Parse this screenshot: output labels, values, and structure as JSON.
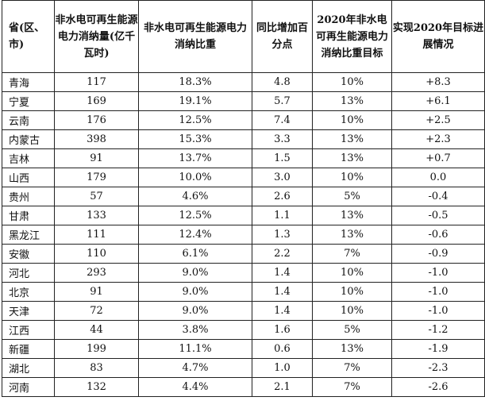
{
  "table": {
    "headers": [
      "省(区、市)",
      "非水电可再生能源电力消纳量(亿千瓦时)",
      "非水电可再生能源电力消纳比重",
      "同比增加百分点",
      "2020年非水电可再生能源电力消纳比重目标",
      "实现2020年目标进展情况"
    ],
    "rows": [
      [
        "青海",
        "117",
        "18.3%",
        "4.8",
        "10%",
        "+8.3"
      ],
      [
        "宁夏",
        "169",
        "19.1%",
        "5.7",
        "13%",
        "+6.1"
      ],
      [
        "云南",
        "176",
        "12.5%",
        "7.4",
        "10%",
        "+2.5"
      ],
      [
        "内蒙古",
        "398",
        "15.3%",
        "3.3",
        "13%",
        "+2.3"
      ],
      [
        "吉林",
        "91",
        "13.7%",
        "1.5",
        "13%",
        "+0.7"
      ],
      [
        "山西",
        "179",
        "10.0%",
        "3.0",
        "10%",
        "0.0"
      ],
      [
        "贵州",
        "57",
        "4.6%",
        "2.6",
        "5%",
        "-0.4"
      ],
      [
        "甘肃",
        "133",
        "12.5%",
        "1.1",
        "13%",
        "-0.5"
      ],
      [
        "黑龙江",
        "111",
        "12.4%",
        "1.3",
        "13%",
        "-0.6"
      ],
      [
        "安徽",
        "110",
        "6.1%",
        "2.2",
        "7%",
        "-0.9"
      ],
      [
        "河北",
        "293",
        "9.0%",
        "1.4",
        "10%",
        "-1.0"
      ],
      [
        "北京",
        "91",
        "9.0%",
        "1.4",
        "10%",
        "-1.0"
      ],
      [
        "天津",
        "72",
        "9.0%",
        "1.4",
        "10%",
        "-1.0"
      ],
      [
        "江西",
        "44",
        "3.8%",
        "1.6",
        "5%",
        "-1.2"
      ],
      [
        "新疆",
        "199",
        "11.1%",
        "0.6",
        "13%",
        "-1.9"
      ],
      [
        "湖北",
        "83",
        "4.7%",
        "1.0",
        "7%",
        "-2.3"
      ],
      [
        "河南",
        "132",
        "4.4%",
        "2.1",
        "7%",
        "-2.6"
      ]
    ]
  }
}
